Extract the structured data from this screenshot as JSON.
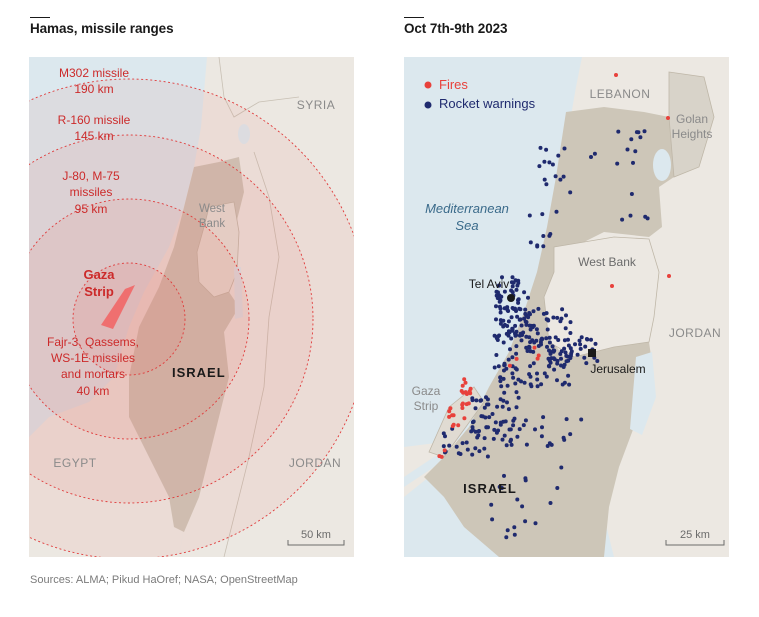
{
  "left_panel": {
    "title": "Hamas, missile ranges",
    "rings": [
      {
        "name": "M302 missile",
        "range": "190 km"
      },
      {
        "name": "R-160 missile",
        "range": "145 km"
      },
      {
        "name": "J-80, M-75 missiles",
        "range": "95 km"
      },
      {
        "name": "Fajr-3, Qassems, WS-1E missiles and mortars",
        "range": "40 km"
      }
    ],
    "ring_label_lines": {
      "m302_name": "M302 missile",
      "m302_range": "190 km",
      "r160_name": "R-160 missile",
      "r160_range": "145 km",
      "j80_line1": "J-80, M-75",
      "j80_line2": "missiles",
      "j80_range": "95 km",
      "fajr_line1": "Fajr-3, Qassems,",
      "fajr_line2": "WS-1E missiles",
      "fajr_line3": "and mortars",
      "fajr_range": "40 km"
    },
    "places": {
      "syria": "SYRIA",
      "west_bank_1": "West",
      "west_bank_2": "Bank",
      "gaza_1": "Gaza",
      "gaza_2": "Strip",
      "israel": "ISRAEL",
      "egypt": "EGYPT",
      "jordan": "JORDAN"
    },
    "scale": "50 km"
  },
  "right_panel": {
    "title": "Oct 7th-9th 2023",
    "legend": [
      {
        "label": "Fires",
        "color": "#e8413b"
      },
      {
        "label": "Rocket warnings",
        "color": "#1f2a6e"
      }
    ],
    "places": {
      "lebanon": "LEBANON",
      "golan_1": "Golan",
      "golan_2": "Heights",
      "sea_1": "Mediterranean",
      "sea_2": "Sea",
      "west_bank": "West Bank",
      "tel_aviv": "Tel Aviv",
      "jordan": "JORDAN",
      "jerusalem": "Jerusalem",
      "gaza_1": "Gaza",
      "gaza_2": "Strip",
      "israel": "ISRAEL"
    },
    "scale": "25 km"
  },
  "sources": "Sources: ALMA; Pikud HaOref; NASA; OpenStreetMap",
  "colors": {
    "sea": "#dce8ee",
    "land": "#ece8e2",
    "israel": "#cdc6b8",
    "gaza": "#ef6f6f",
    "ring_line": "#e03a3a",
    "label_red": "#cc2a2a",
    "fire": "#e8413b",
    "rocket": "#1f2a6e"
  }
}
